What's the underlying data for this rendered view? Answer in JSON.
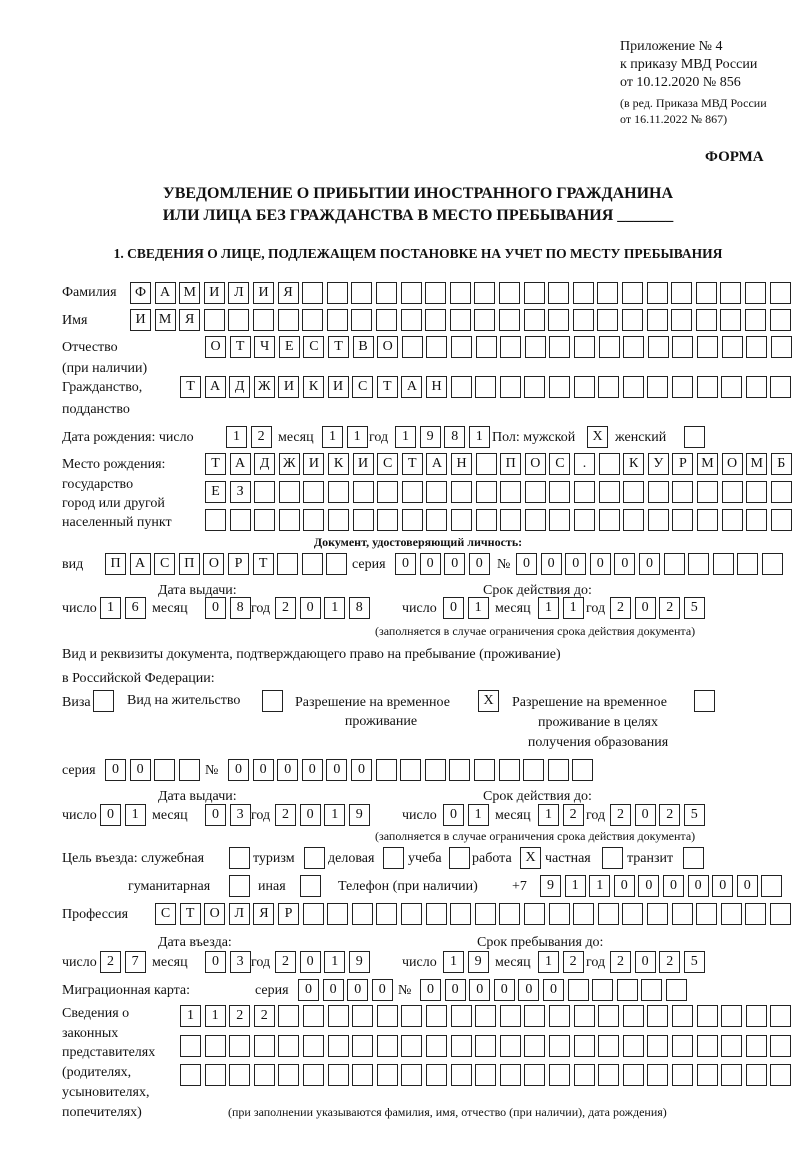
{
  "header": {
    "l1": "Приложение № 4",
    "l2": "к приказу МВД России",
    "l3": "от 10.12.2020 № 856",
    "l4": "(в ред. Приказа МВД России",
    "l5": "от 16.11.2022 № 867)",
    "forma": "ФОРМА"
  },
  "title": {
    "line1": "УВЕДОМЛЕНИЕ О ПРИБЫТИИ ИНОСТРАННОГО ГРАЖДАНИНА",
    "line2": "ИЛИ ЛИЦА БЕЗ ГРАЖДАНСТВА В МЕСТО ПРЕБЫВАНИЯ _______"
  },
  "section1": "1. СВЕДЕНИЯ О ЛИЦЕ, ПОДЛЕЖАЩЕМ ПОСТАНОВКЕ НА УЧЕТ ПО МЕСТУ ПРЕБЫВАНИЯ",
  "labels": {
    "surname": "Фамилия",
    "name": "Имя",
    "patronymic": "Отчество",
    "patronymic2": "(при наличии)",
    "citizenship": "Гражданство,",
    "citizenship2": "подданство",
    "birth_date": "Дата рождения:  число",
    "day": "число",
    "month": "месяц",
    "year": "год",
    "sex": "Пол: мужской",
    "female": "женский",
    "birthplace1": "Место рождения:",
    "birthplace2": "государство",
    "birthplace3": "город или другой",
    "birthplace4": "населенный пункт",
    "id_doc": "Документ, удостоверяющий личность:",
    "kind": "вид",
    "series": "серия",
    "number": "№",
    "issue_date": "Дата выдачи:",
    "valid_until": "Срок действия до:",
    "validity_note": "(заполняется в случае ограничения срока действия документа)",
    "right_doc1": "Вид и реквизиты документа, подтверждающего право на пребывание (проживание)",
    "right_doc2": "в Российской Федерации:",
    "visa": "Виза",
    "residence": "Вид на жительство",
    "trp1": "Разрешение на временное",
    "trp2": "проживание",
    "trpe1": "Разрешение на временное",
    "trpe2": "проживание в целях",
    "trpe3": "получения образования",
    "purpose": "Цель въезда: служебная",
    "tourism": "туризм",
    "business": "деловая",
    "study": "учеба",
    "work": "работа",
    "private": "частная",
    "transit": "транзит",
    "humanitarian": "гуманитарная",
    "other": "иная",
    "phone": "Телефон (при наличии)",
    "phone_prefix": "+7",
    "profession": "Профессия",
    "entry_date": "Дата въезда:",
    "stay_until": "Срок пребывания до:",
    "migration_card": "Миграционная карта:",
    "rep1": "Сведения о",
    "rep2": "законных",
    "rep3": "представителях",
    "rep4": "(родителях,",
    "rep5": "усыновителях,",
    "rep6": "попечителях)",
    "rep_note": "(при заполнении указываются фамилия, имя, отчество (при наличии), дата рождения)"
  },
  "values": {
    "surname": "ФАМИЛИЯ",
    "name": "ИМЯ",
    "patronymic": "ОТЧЕСТВО",
    "citizenship": "ТАДЖИКИСТАН",
    "birth_day": "12",
    "birth_month": "11",
    "birth_year": "1981",
    "male": "X",
    "female": "",
    "birthplace1": "ТАДЖИКИСТАН ПОС. КУРМОМБ",
    "birthplace2": "ЕЗ",
    "birthplace3": "",
    "id_kind": "ПАСПОРТ",
    "id_series": "0000",
    "id_number": "000000",
    "id_issue_day": "16",
    "id_issue_month": "08",
    "id_issue_year": "2018",
    "id_valid_day": "01",
    "id_valid_month": "11",
    "id_valid_year": "2025",
    "visa": "",
    "residence": "",
    "trp": "X",
    "trpe": "",
    "rd_series": "00",
    "rd_number": "000000",
    "rd_issue_day": "01",
    "rd_issue_month": "03",
    "rd_issue_year": "2019",
    "rd_valid_day": "01",
    "rd_valid_month": "12",
    "rd_valid_year": "2025",
    "p_official": "",
    "p_tourism": "",
    "p_business": "",
    "p_study": "",
    "p_work": "X",
    "p_private": "",
    "p_transit": "",
    "p_humanitarian": "",
    "p_other": "",
    "phone": "911000000",
    "profession": "СТОЛЯР",
    "entry_day": "27",
    "entry_month": "03",
    "entry_year": "2019",
    "stay_day": "19",
    "stay_month": "12",
    "stay_year": "2025",
    "mc_series": "0000",
    "mc_number": "000000",
    "rep1": "1122",
    "rep2": "",
    "rep3": ""
  }
}
